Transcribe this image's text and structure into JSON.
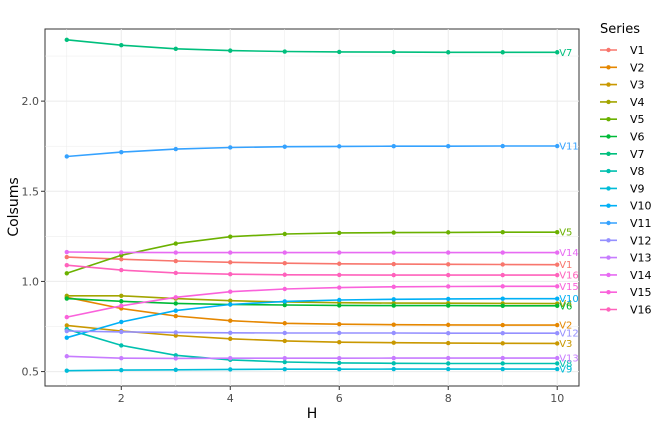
{
  "chart_data": {
    "type": "line",
    "xlabel": "H",
    "ylabel": "Colsums",
    "xlim": [
      0.6,
      10.4
    ],
    "ylim": [
      0.42,
      2.4
    ],
    "xticks": [
      2,
      4,
      6,
      8,
      10
    ],
    "yticks": [
      0.5,
      1.0,
      1.5,
      2.0
    ],
    "xtick_labels": [
      "2",
      "4",
      "6",
      "8",
      "10"
    ],
    "ytick_labels": [
      "0.5",
      "1.0",
      "1.5",
      "2.0"
    ],
    "grid": true,
    "legend": {
      "title": "Series",
      "placement": "right"
    },
    "x": [
      1,
      2,
      3,
      4,
      5,
      6,
      7,
      8,
      9,
      10
    ],
    "series": [
      {
        "name": "V1",
        "color": "#F8766D",
        "values": [
          1.135,
          1.123,
          1.113,
          1.106,
          1.101,
          1.098,
          1.096,
          1.095,
          1.094,
          1.093
        ]
      },
      {
        "name": "V2",
        "color": "#E58700",
        "values": [
          0.912,
          0.85,
          0.808,
          0.782,
          0.768,
          0.763,
          0.76,
          0.759,
          0.758,
          0.758
        ]
      },
      {
        "name": "V3",
        "color": "#C99800",
        "values": [
          0.756,
          0.725,
          0.7,
          0.682,
          0.67,
          0.663,
          0.66,
          0.658,
          0.657,
          0.656
        ]
      },
      {
        "name": "V4",
        "color": "#A3A500",
        "values": [
          0.92,
          0.92,
          0.905,
          0.893,
          0.886,
          0.882,
          0.88,
          0.879,
          0.878,
          0.877
        ]
      },
      {
        "name": "V5",
        "color": "#6BB100",
        "values": [
          1.045,
          1.145,
          1.21,
          1.248,
          1.263,
          1.269,
          1.271,
          1.272,
          1.273,
          1.273
        ]
      },
      {
        "name": "V6",
        "color": "#00BA38",
        "values": [
          0.905,
          0.89,
          0.878,
          0.872,
          0.869,
          0.867,
          0.866,
          0.866,
          0.865,
          0.865
        ]
      },
      {
        "name": "V7",
        "color": "#00BF7D",
        "values": [
          2.34,
          2.31,
          2.29,
          2.28,
          2.275,
          2.273,
          2.272,
          2.271,
          2.271,
          2.271
        ]
      },
      {
        "name": "V8",
        "color": "#00C0AF",
        "values": [
          0.735,
          0.645,
          0.59,
          0.565,
          0.553,
          0.548,
          0.546,
          0.545,
          0.545,
          0.545
        ]
      },
      {
        "name": "V9",
        "color": "#00BCD8",
        "values": [
          0.505,
          0.508,
          0.51,
          0.512,
          0.513,
          0.513,
          0.514,
          0.514,
          0.514,
          0.514
        ]
      },
      {
        "name": "V10",
        "color": "#00B0F6",
        "values": [
          0.688,
          0.775,
          0.838,
          0.872,
          0.889,
          0.897,
          0.901,
          0.903,
          0.904,
          0.904
        ]
      },
      {
        "name": "V11",
        "color": "#35A2FF",
        "values": [
          1.693,
          1.717,
          1.734,
          1.743,
          1.747,
          1.749,
          1.75,
          1.75,
          1.751,
          1.751
        ]
      },
      {
        "name": "V12",
        "color": "#9590FF",
        "values": [
          0.725,
          0.72,
          0.717,
          0.715,
          0.714,
          0.714,
          0.714,
          0.713,
          0.713,
          0.713
        ]
      },
      {
        "name": "V13",
        "color": "#C77CFF",
        "values": [
          0.585,
          0.574,
          0.573,
          0.574,
          0.574,
          0.574,
          0.575,
          0.575,
          0.575,
          0.575
        ]
      },
      {
        "name": "V14",
        "color": "#E76BF3",
        "values": [
          1.163,
          1.161,
          1.16,
          1.16,
          1.16,
          1.16,
          1.16,
          1.16,
          1.16,
          1.16
        ]
      },
      {
        "name": "V15",
        "color": "#FA62DB",
        "values": [
          0.802,
          0.865,
          0.912,
          0.943,
          0.958,
          0.966,
          0.97,
          0.972,
          0.973,
          0.973
        ]
      },
      {
        "name": "V16",
        "color": "#FF62BC",
        "values": [
          1.09,
          1.063,
          1.047,
          1.04,
          1.037,
          1.036,
          1.035,
          1.035,
          1.035,
          1.035
        ]
      }
    ]
  }
}
